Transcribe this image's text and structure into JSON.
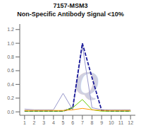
{
  "chart_data": {
    "type": "line",
    "title": "7157-MSM3",
    "subtitle": "Non-Specific Antibody Signal <10%",
    "annotations": [
      {
        "text": "Q",
        "color": "#D0D0E0"
      }
    ],
    "x": [
      1,
      2,
      3,
      4,
      5,
      6,
      7,
      8,
      9,
      10,
      11,
      12
    ],
    "series": [
      {
        "color": "#9999CC",
        "line_style": "solid",
        "values": [
          0.04,
          0.03,
          0.03,
          0.03,
          0.27,
          0.03,
          0.96,
          0.06,
          0.03,
          0.03,
          0.03,
          0.03
        ]
      },
      {
        "color": "#1a1a99",
        "line_style": "dashed",
        "values": [
          0.01,
          0.01,
          0.01,
          0.01,
          0.01,
          0.06,
          1.0,
          0.5,
          0.02,
          0.01,
          0.01,
          0.01
        ]
      },
      {
        "color": "#66CC00",
        "line_style": "solid",
        "values": [
          0.01,
          0.01,
          0.01,
          0.01,
          0.01,
          0.06,
          0.18,
          0.03,
          0.01,
          0.01,
          0.01,
          0.01
        ]
      },
      {
        "color": "#FF9900",
        "line_style": "solid",
        "values": [
          0.02,
          0.02,
          0.02,
          0.02,
          0.02,
          0.03,
          0.05,
          0.03,
          0.02,
          0.02,
          0.02,
          0.02
        ]
      }
    ],
    "xlim": [
      0.5,
      12.5
    ],
    "xticks": [
      1,
      2,
      3,
      4,
      5,
      6,
      7,
      8,
      9,
      10,
      11,
      12
    ],
    "ylim": [
      -0.05,
      1.28
    ],
    "yticks": [
      {
        "value": 0,
        "label": "0.0"
      },
      0.2,
      0.4,
      0.6,
      0.8,
      {
        "value": 1.0,
        "label": "1.0"
      },
      1.2
    ]
  }
}
